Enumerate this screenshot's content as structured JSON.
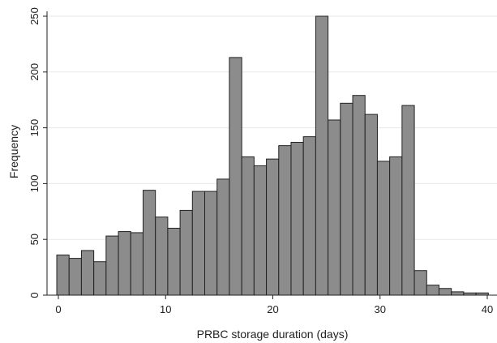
{
  "chart_data": {
    "type": "bar",
    "subtype": "histogram",
    "title": "",
    "xlabel": "PRBC storage duration (days)",
    "ylabel": "Frequency",
    "xlim": [
      -1,
      41
    ],
    "ylim": [
      0,
      255
    ],
    "xticks": [
      0,
      10,
      20,
      30,
      40
    ],
    "yticks": [
      0,
      50,
      100,
      150,
      200,
      250
    ],
    "grid": "horizontal",
    "bin_width": 1.15,
    "bin_start": -0.15,
    "values": [
      36,
      33,
      40,
      30,
      53,
      57,
      56,
      94,
      70,
      60,
      76,
      93,
      93,
      104,
      213,
      124,
      116,
      122,
      134,
      137,
      142,
      250,
      157,
      172,
      179,
      162,
      120,
      124,
      170,
      22,
      9,
      6,
      3,
      2,
      2
    ],
    "colors": {
      "bar_fill": "#8c8c8c",
      "bar_stroke": "#222222",
      "grid": "#e8e8e8",
      "axis": "#222222"
    }
  }
}
